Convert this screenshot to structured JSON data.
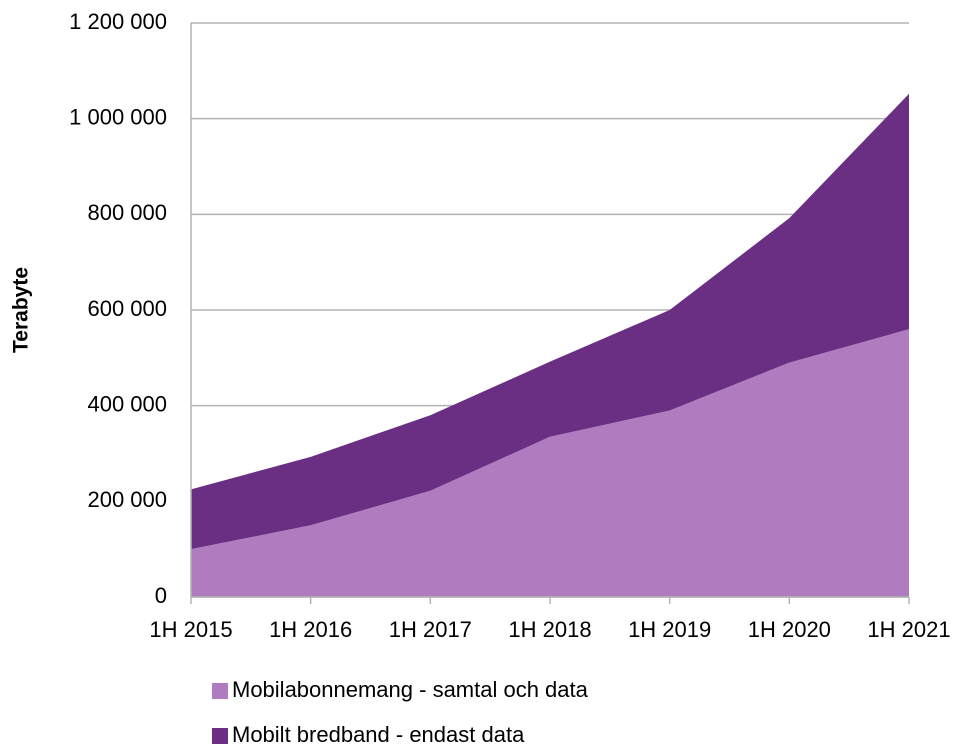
{
  "chart_data": {
    "type": "stacked_area",
    "y_label": "Terabyte",
    "categories": [
      "1H 2015",
      "1H 2016",
      "1H 2017",
      "1H 2018",
      "1H 2019",
      "1H 2020",
      "1H 2021"
    ],
    "series": [
      {
        "name": "Mobilabonnemang - samtal och data",
        "color": "#b07cc0",
        "values": [
          100000,
          150000,
          222000,
          335000,
          390000,
          490000,
          560000
        ]
      },
      {
        "name": "Mobilt bredband - endast data",
        "color": "#6a2f82",
        "values": [
          125000,
          143000,
          158000,
          157000,
          210000,
          302000,
          492000
        ]
      }
    ],
    "ylim": [
      0,
      1200000
    ],
    "yticks": [
      0,
      {
        "value": 200000,
        "label": "200 000"
      },
      {
        "value": 400000,
        "label": "400 000"
      },
      {
        "value": 600000,
        "label": "600 000"
      },
      {
        "value": 800000,
        "label": "800 000"
      },
      {
        "value": 1000000,
        "label": "1 000 000"
      },
      {
        "value": 1200000,
        "label": "1 200 000"
      }
    ],
    "grid": true
  }
}
